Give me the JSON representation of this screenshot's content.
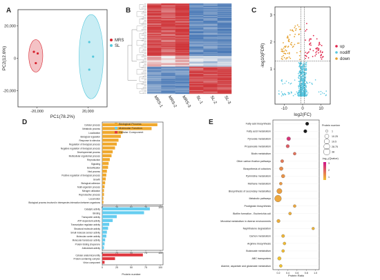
{
  "panels": {
    "A": "A",
    "B": "B",
    "C": "C",
    "D": "D",
    "E": "E"
  },
  "chart_data": [
    {
      "id": "A",
      "type": "scatter",
      "xlabel": "PC1(78.2%)",
      "ylabel": "PC2(12.6%)",
      "xlim": [
        -35000,
        35000
      ],
      "ylim": [
        -30000,
        30000
      ],
      "xticks": [
        "-20,000",
        "20,000"
      ],
      "yticks": [
        "20,000",
        "0",
        "-20,000"
      ],
      "xtick_values": [
        -20000,
        20000
      ],
      "ytick_values": [
        20000,
        0,
        -20000
      ],
      "grid": false,
      "legend_position": "right",
      "series": [
        {
          "name": "MRS",
          "color": "#d6222d",
          "ellipse_fill": "#f2b7bb",
          "points": [
            [
              -22500,
              4000
            ],
            [
              -19500,
              3000
            ],
            [
              -21000,
              -3000
            ]
          ],
          "ellipse": {
            "cx": -21000,
            "cy": 1500,
            "rx": 5500,
            "ry": 10000,
            "rot": 0
          }
        },
        {
          "name": "SL",
          "color": "#56c8dc",
          "ellipse_fill": "#bfeaf2",
          "points": [
            [
              21000,
              10000
            ],
            [
              24000,
              1000
            ],
            [
              21000,
              -7000
            ]
          ],
          "ellipse": {
            "cx": 22500,
            "cy": 1000,
            "rx": 9500,
            "ry": 26000,
            "rot": 0
          }
        }
      ]
    },
    {
      "id": "B",
      "type": "heatmap",
      "columns": [
        "MRS-1",
        "MRS-2",
        "MRS-3",
        "SL-1",
        "SL-2",
        "SL-3"
      ],
      "color_low": "#4a79b6",
      "color_mid": "#f2f2f2",
      "color_high": "#cf3539",
      "row_groups": [
        {
          "rows": 58,
          "pattern": [
            0.9,
            0.8,
            0.95,
            -0.85,
            -0.8,
            -0.9
          ]
        },
        {
          "rows": 12,
          "pattern": [
            0.3,
            0.2,
            0.35,
            -0.25,
            -0.35,
            -0.2
          ]
        },
        {
          "rows": 30,
          "pattern": [
            -0.75,
            -0.85,
            -0.8,
            0.9,
            0.85,
            0.95
          ]
        }
      ]
    },
    {
      "id": "C",
      "type": "scatter",
      "xlabel": "log2(FC)",
      "ylabel": "-log10(FDR)",
      "xlim": [
        -15,
        15
      ],
      "ylim": [
        -0.3,
        3.3
      ],
      "xticks": [
        "-10",
        "0",
        "10"
      ],
      "yticks": [
        "3",
        "2",
        "1"
      ],
      "xtick_values": [
        -10,
        0,
        10
      ],
      "ytick_values": [
        3,
        2,
        1
      ],
      "threshold_lines": {
        "x": [
          -1,
          1
        ],
        "y": 1.3
      },
      "grid": false,
      "legend_position": "right",
      "series": [
        {
          "name": "up",
          "color": "#e0234a"
        },
        {
          "name": "nodiff",
          "color": "#57c6e0"
        },
        {
          "name": "down",
          "color": "#e5a12e"
        }
      ]
    },
    {
      "id": "D",
      "type": "bar",
      "orientation": "horizontal",
      "xlabel": "Protein number",
      "xticks": [
        "0",
        "25",
        "50",
        "75",
        "100"
      ],
      "xlim": [
        0,
        100
      ],
      "legend_position": "top-right",
      "series": [
        {
          "name": "Biological Process",
          "color": "#f0a92e",
          "categories": [
            "Cellular process",
            "Metabolic process",
            "Localization",
            "Biological regulation",
            "Response to stimulus",
            "Regulation of biological process",
            "Negative regulation of biological process",
            "Developmental process",
            "Multicellular organismal process",
            "Reproduction",
            "Signaling",
            "Detoxification",
            "Viral process",
            "Positive regulation of biological process",
            "Growth",
            "Biological adhesion",
            "Multi-organism process",
            "Nitrogen utilization",
            "Reproductive process",
            "Locomotion",
            "Biological process involved in interspecies interaction between organisms"
          ],
          "values": [
            95,
            85,
            35,
            32,
            28,
            25,
            22,
            18,
            16,
            13,
            11,
            10,
            8,
            7,
            6,
            5,
            4,
            3,
            3,
            2,
            2
          ]
        },
        {
          "name": "Molecular Function",
          "color": "#65cdf0",
          "categories": [
            "Catalytic activity",
            "Binding",
            "Transporter activity",
            "ATP-dependent activity",
            "Transcription regulator activity",
            "Structural molecule activity",
            "Small molecule sensor activity",
            "Molecular carrier activity",
            "Molecular transducer activity",
            "Protein folding chaperone",
            "Antioxidant activity"
          ],
          "values": [
            82,
            72,
            25,
            18,
            12,
            10,
            8,
            7,
            5,
            4,
            3
          ]
        },
        {
          "name": "Cellular Component",
          "color": "#e0373f",
          "categories": [
            "Cellular anatomical entity",
            "Protein-containing complex",
            "Virion component"
          ],
          "values": [
            70,
            22,
            4
          ]
        }
      ]
    },
    {
      "id": "E",
      "type": "scatter",
      "subtype": "bubble",
      "xlabel": "Protein Ratio",
      "xticks": [
        "0.2",
        "0.4",
        "0.6",
        "0.8",
        "1.0"
      ],
      "xtick_values": [
        0.2,
        0.4,
        0.6,
        0.8,
        1.0
      ],
      "xlim": [
        0.08,
        1.08
      ],
      "categories": [
        "Fatty acid biosynthesis",
        "Fatty acid metabolism",
        "Pyruvate metabolism",
        "Propanoate metabolism",
        "Biotin metabolism",
        "Other carbon fixation pathways",
        "Biosynthesis of cofactors",
        "Pyrimidine metabolism",
        "Methane metabolism",
        "Biosynthesis of secondary metabolites",
        "Metabolic pathways",
        "Prodigiosin biosynthesis",
        "Biofilm formation - Escherichia coli",
        "Microbial metabolism in diverse environments",
        "Naphthalene degradation",
        "Carbon metabolism",
        "Arginine biosynthesis",
        "Butanoate metabolism",
        "ABC transporters",
        "Alanine, aspartate and glutamate metabolism"
      ],
      "protein_ratio": [
        0.82,
        0.78,
        0.42,
        0.4,
        0.55,
        0.28,
        0.26,
        0.3,
        0.25,
        0.22,
        0.19,
        0.55,
        0.45,
        0.2,
        0.95,
        0.3,
        0.33,
        0.3,
        0.22,
        0.25
      ],
      "protein_number": [
        5,
        5,
        8,
        5,
        3,
        4,
        7,
        6,
        3,
        20,
        40,
        3,
        3,
        5,
        2,
        4,
        3,
        3,
        6,
        3
      ],
      "neg_log10_qvalue": [
        3.0,
        2.8,
        2.5,
        1.9,
        1.6,
        1.5,
        1.2,
        1.1,
        1.0,
        0.9,
        0.8,
        0.8,
        0.7,
        0.7,
        0.6,
        0.6,
        0.5,
        0.5,
        0.4,
        0.4
      ],
      "size_legend": {
        "title": "Protein number",
        "labels": [
          "1",
          "10.25",
          "19.5",
          "28.75",
          "38"
        ]
      },
      "color_legend": {
        "title": "-log₁₀(Qvalue)",
        "labels": [
          "3",
          "2",
          "1"
        ],
        "low": "#f2c230",
        "high": "#d0138a"
      }
    }
  ]
}
